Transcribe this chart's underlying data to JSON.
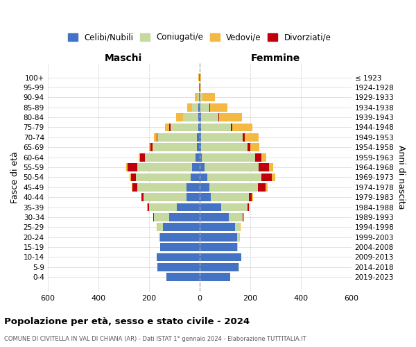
{
  "age_groups": [
    "0-4",
    "5-9",
    "10-14",
    "15-19",
    "20-24",
    "25-29",
    "30-34",
    "35-39",
    "40-44",
    "45-49",
    "50-54",
    "55-59",
    "60-64",
    "65-69",
    "70-74",
    "75-79",
    "80-84",
    "85-89",
    "90-94",
    "95-99",
    "100+"
  ],
  "birth_years": [
    "2019-2023",
    "2014-2018",
    "2009-2013",
    "2004-2008",
    "1999-2003",
    "1994-1998",
    "1989-1993",
    "1984-1988",
    "1979-1983",
    "1974-1978",
    "1969-1973",
    "1964-1968",
    "1959-1963",
    "1954-1958",
    "1949-1953",
    "1944-1948",
    "1939-1943",
    "1934-1938",
    "1929-1933",
    "1924-1928",
    "≤ 1923"
  ],
  "colors": {
    "celibi": "#4472C4",
    "coniugati": "#C5D9A0",
    "vedovi": "#F4B942",
    "divorziati": "#C0000C"
  },
  "males": {
    "celibi": [
      130,
      165,
      170,
      155,
      155,
      145,
      120,
      90,
      50,
      50,
      35,
      30,
      15,
      10,
      10,
      5,
      6,
      4,
      3,
      1,
      2
    ],
    "coniugati": [
      0,
      0,
      0,
      1,
      5,
      20,
      60,
      110,
      170,
      195,
      215,
      215,
      200,
      175,
      155,
      110,
      60,
      25,
      5,
      0,
      0
    ],
    "vedovi": [
      0,
      0,
      0,
      0,
      0,
      2,
      0,
      1,
      2,
      3,
      5,
      5,
      5,
      5,
      10,
      15,
      25,
      20,
      10,
      1,
      3
    ],
    "divorziati": [
      0,
      0,
      0,
      0,
      0,
      1,
      2,
      5,
      8,
      20,
      20,
      40,
      20,
      10,
      5,
      5,
      0,
      0,
      0,
      0,
      0
    ]
  },
  "females": {
    "nubili": [
      120,
      155,
      165,
      150,
      150,
      140,
      115,
      85,
      45,
      40,
      30,
      20,
      10,
      5,
      5,
      5,
      5,
      4,
      2,
      1,
      2
    ],
    "coniugati": [
      0,
      2,
      1,
      2,
      10,
      20,
      55,
      105,
      150,
      190,
      215,
      215,
      210,
      185,
      165,
      120,
      70,
      35,
      10,
      0,
      0
    ],
    "vedove": [
      0,
      0,
      0,
      0,
      0,
      2,
      2,
      3,
      5,
      8,
      15,
      15,
      20,
      35,
      55,
      80,
      90,
      70,
      50,
      5,
      5
    ],
    "divorziate": [
      0,
      0,
      0,
      0,
      0,
      1,
      3,
      5,
      12,
      30,
      40,
      40,
      25,
      12,
      8,
      5,
      3,
      2,
      0,
      0,
      0
    ]
  },
  "xlim": 600,
  "xticks": [
    -600,
    -400,
    -200,
    0,
    200,
    400,
    600
  ],
  "xticklabels": [
    "600",
    "400",
    "200",
    "0",
    "200",
    "400",
    "600"
  ],
  "title": "Popolazione per età, sesso e stato civile - 2024",
  "subtitle": "COMUNE DI CIVITELLA IN VAL DI CHIANA (AR) - Dati ISTAT 1° gennaio 2024 - Elaborazione TUTTITALIA.IT",
  "ylabel": "Fasce di età",
  "ylabel2": "Anni di nascita",
  "legend_labels": [
    "Celibi/Nubili",
    "Coniugati/e",
    "Vedovi/e",
    "Divorziati/e"
  ],
  "maschi_label": "Maschi",
  "femmine_label": "Femmine",
  "figsize": [
    6.0,
    5.0
  ],
  "dpi": 100
}
